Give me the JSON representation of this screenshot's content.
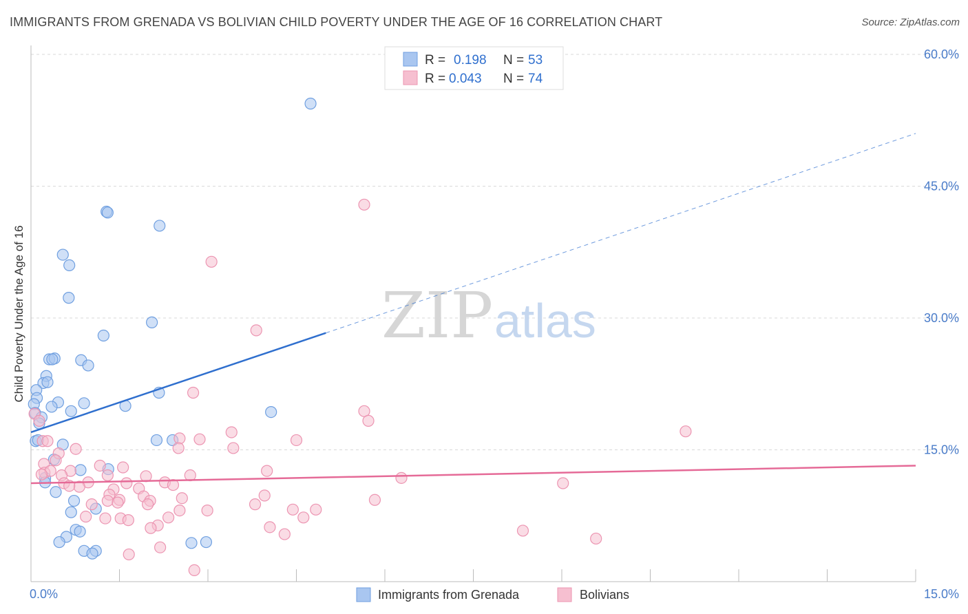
{
  "header": {
    "title": "IMMIGRANTS FROM GRENADA VS BOLIVIAN CHILD POVERTY UNDER THE AGE OF 16 CORRELATION CHART",
    "source": "Source: ZipAtlas.com"
  },
  "watermark": {
    "zip": "ZIP",
    "atlas": "atlas"
  },
  "legend": {
    "rows": [
      {
        "r_label": "R =",
        "r_value": "0.198",
        "n_label": "N =",
        "n_value": "53"
      },
      {
        "r_label": "R =",
        "r_value": "0.043",
        "n_label": "N =",
        "n_value": "74"
      }
    ]
  },
  "chart_data": {
    "type": "scatter",
    "title": "IMMIGRANTS FROM GRENADA VS BOLIVIAN CHILD POVERTY UNDER THE AGE OF 16 CORRELATION CHART",
    "xlabel": "",
    "ylabel": "Child Poverty Under the Age of 16",
    "xlim": [
      0,
      15
    ],
    "ylim": [
      0,
      60
    ],
    "x_tick_labels": [
      {
        "value": 0,
        "label": "0.0%"
      },
      {
        "value": 15,
        "label": "15.0%"
      }
    ],
    "y_tick_labels": [
      {
        "value": 15,
        "label": "15.0%"
      },
      {
        "value": 30,
        "label": "30.0%"
      },
      {
        "value": 45,
        "label": "45.0%"
      },
      {
        "value": 60,
        "label": "60.0%"
      }
    ],
    "x_minor_ticks": [
      1.5,
      3,
      4.5,
      6,
      7.5,
      9,
      10.5,
      12,
      13.5,
      15
    ],
    "grid": true,
    "legend_position": "top-center",
    "colors": {
      "grenada_fill": "#a9c6f0",
      "grenada_stroke": "#6f9fe0",
      "grenada_line": "#2f6fce",
      "bolivian_fill": "#f6bfd0",
      "bolivian_stroke": "#ec94b1",
      "bolivian_line": "#e56a97",
      "grid": "#d9d9d9",
      "axis_text": "#4a7cc9"
    },
    "series": [
      {
        "name": "Immigrants from Grenada",
        "r": 0.198,
        "n": 53,
        "trend": {
          "solid": [
            [
              0.0,
              17.0
            ],
            [
              5.0,
              28.3
            ]
          ],
          "dashed": [
            [
              5.0,
              28.3
            ],
            [
              15.0,
              51.0
            ]
          ]
        },
        "points": [
          [
            4.74,
            54.4
          ],
          [
            1.28,
            42.1
          ],
          [
            1.3,
            42.0
          ],
          [
            2.18,
            40.5
          ],
          [
            0.54,
            37.2
          ],
          [
            0.65,
            36.0
          ],
          [
            0.64,
            32.3
          ],
          [
            2.05,
            29.5
          ],
          [
            1.23,
            28.0
          ],
          [
            0.31,
            25.3
          ],
          [
            0.4,
            25.4
          ],
          [
            0.36,
            25.3
          ],
          [
            0.85,
            25.2
          ],
          [
            0.97,
            24.6
          ],
          [
            0.26,
            23.4
          ],
          [
            0.21,
            22.6
          ],
          [
            0.28,
            22.7
          ],
          [
            0.09,
            21.8
          ],
          [
            2.17,
            21.5
          ],
          [
            0.1,
            20.9
          ],
          [
            0.05,
            20.2
          ],
          [
            0.46,
            20.4
          ],
          [
            0.9,
            20.3
          ],
          [
            1.6,
            20.0
          ],
          [
            0.07,
            19.2
          ],
          [
            0.35,
            19.9
          ],
          [
            0.68,
            19.4
          ],
          [
            4.07,
            19.3
          ],
          [
            0.18,
            18.7
          ],
          [
            0.14,
            18.0
          ],
          [
            0.08,
            16.0
          ],
          [
            0.12,
            16.1
          ],
          [
            0.54,
            15.6
          ],
          [
            2.13,
            16.1
          ],
          [
            2.4,
            16.1
          ],
          [
            0.39,
            13.9
          ],
          [
            0.84,
            12.7
          ],
          [
            1.31,
            12.8
          ],
          [
            0.24,
            11.8
          ],
          [
            0.24,
            11.3
          ],
          [
            0.42,
            10.2
          ],
          [
            0.73,
            9.2
          ],
          [
            1.1,
            8.3
          ],
          [
            0.68,
            7.9
          ],
          [
            0.76,
            5.9
          ],
          [
            0.83,
            5.7
          ],
          [
            0.6,
            5.1
          ],
          [
            0.48,
            4.5
          ],
          [
            2.72,
            4.4
          ],
          [
            2.97,
            4.5
          ],
          [
            0.9,
            3.5
          ],
          [
            1.1,
            3.5
          ],
          [
            1.04,
            3.2
          ]
        ]
      },
      {
        "name": "Bolivians",
        "r": 0.043,
        "n": 74,
        "trend": {
          "solid": [
            [
              0.0,
              11.2
            ],
            [
              15.0,
              13.2
            ]
          ]
        },
        "points": [
          [
            5.65,
            42.9
          ],
          [
            3.06,
            36.4
          ],
          [
            3.82,
            28.6
          ],
          [
            2.75,
            21.5
          ],
          [
            5.65,
            19.4
          ],
          [
            5.72,
            18.3
          ],
          [
            11.1,
            17.1
          ],
          [
            3.4,
            17.0
          ],
          [
            0.06,
            19.1
          ],
          [
            0.14,
            18.3
          ],
          [
            2.52,
            16.3
          ],
          [
            2.86,
            16.2
          ],
          [
            4.5,
            16.1
          ],
          [
            0.2,
            16.0
          ],
          [
            0.28,
            16.0
          ],
          [
            0.76,
            15.1
          ],
          [
            2.5,
            15.2
          ],
          [
            3.43,
            15.2
          ],
          [
            0.47,
            14.6
          ],
          [
            0.42,
            13.8
          ],
          [
            0.22,
            13.4
          ],
          [
            1.17,
            13.2
          ],
          [
            1.56,
            13.0
          ],
          [
            0.23,
            12.4
          ],
          [
            0.33,
            12.6
          ],
          [
            0.67,
            12.6
          ],
          [
            0.18,
            12.2
          ],
          [
            0.52,
            12.1
          ],
          [
            1.3,
            12.1
          ],
          [
            1.95,
            12.0
          ],
          [
            2.7,
            12.1
          ],
          [
            4.0,
            12.6
          ],
          [
            6.28,
            11.8
          ],
          [
            0.56,
            11.2
          ],
          [
            0.97,
            11.3
          ],
          [
            1.62,
            11.2
          ],
          [
            2.27,
            11.3
          ],
          [
            0.82,
            10.8
          ],
          [
            0.65,
            10.9
          ],
          [
            1.4,
            10.5
          ],
          [
            1.83,
            10.6
          ],
          [
            2.41,
            11.0
          ],
          [
            9.02,
            11.2
          ],
          [
            1.33,
            9.9
          ],
          [
            1.5,
            9.3
          ],
          [
            1.3,
            9.2
          ],
          [
            1.47,
            9.0
          ],
          [
            1.91,
            9.7
          ],
          [
            2.56,
            9.5
          ],
          [
            3.96,
            9.8
          ],
          [
            1.03,
            8.8
          ],
          [
            5.83,
            9.3
          ],
          [
            2.02,
            9.2
          ],
          [
            1.98,
            8.8
          ],
          [
            3.8,
            8.8
          ],
          [
            4.44,
            8.2
          ],
          [
            2.99,
            8.1
          ],
          [
            2.52,
            8.1
          ],
          [
            4.83,
            8.2
          ],
          [
            0.93,
            7.4
          ],
          [
            1.26,
            7.2
          ],
          [
            1.52,
            7.2
          ],
          [
            2.33,
            7.3
          ],
          [
            4.62,
            7.3
          ],
          [
            1.65,
            7.0
          ],
          [
            2.15,
            6.4
          ],
          [
            2.03,
            6.1
          ],
          [
            4.05,
            6.2
          ],
          [
            4.3,
            5.4
          ],
          [
            8.34,
            5.8
          ],
          [
            9.58,
            4.9
          ],
          [
            2.19,
            3.9
          ],
          [
            1.66,
            3.1
          ],
          [
            2.77,
            1.3
          ]
        ]
      }
    ]
  },
  "bottom_legend": {
    "items": [
      "Immigrants from Grenada",
      "Bolivians"
    ]
  }
}
